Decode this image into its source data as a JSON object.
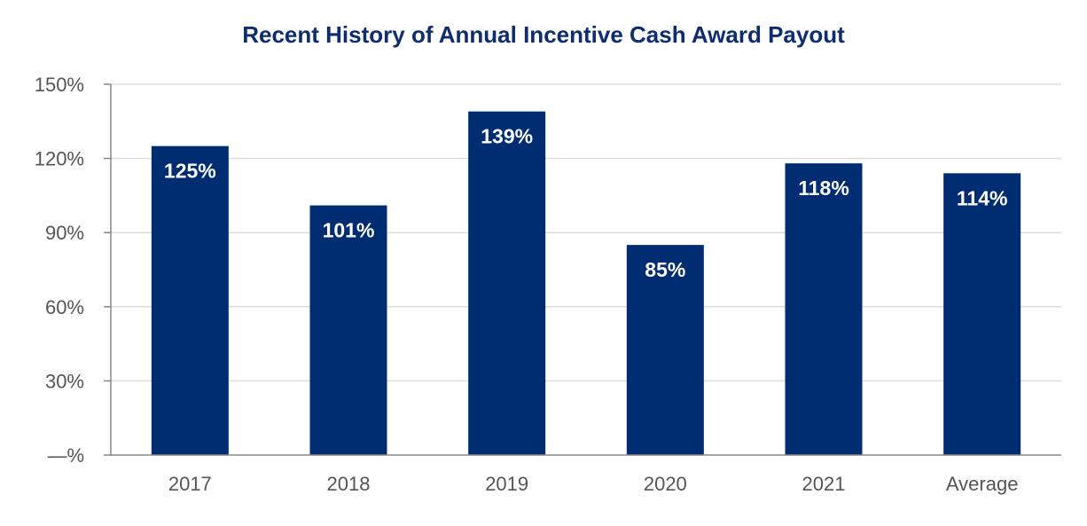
{
  "chart_data": {
    "type": "bar",
    "title": "Recent History of Annual Incentive Cash Award Payout",
    "xlabel": "",
    "ylabel": "",
    "categories": [
      "2017",
      "2018",
      "2019",
      "2020",
      "2021",
      "Average"
    ],
    "values": [
      125,
      101,
      139,
      85,
      118,
      114
    ],
    "data_labels": [
      "125%",
      "101%",
      "139%",
      "85%",
      "118%",
      "114%"
    ],
    "ylim": [
      0,
      150
    ],
    "yticks": [
      0,
      30,
      60,
      90,
      120,
      150
    ],
    "ytick_labels": [
      "—%",
      "30%",
      "60%",
      "90%",
      "120%",
      "150%"
    ],
    "grid": true,
    "legend": "none",
    "colors": {
      "bar": "#002d72",
      "title": "#0e2d6e",
      "data_label": "#ffffff",
      "tick_label": "#555555",
      "gridline": "#dddddd",
      "axis": "#888888"
    }
  }
}
